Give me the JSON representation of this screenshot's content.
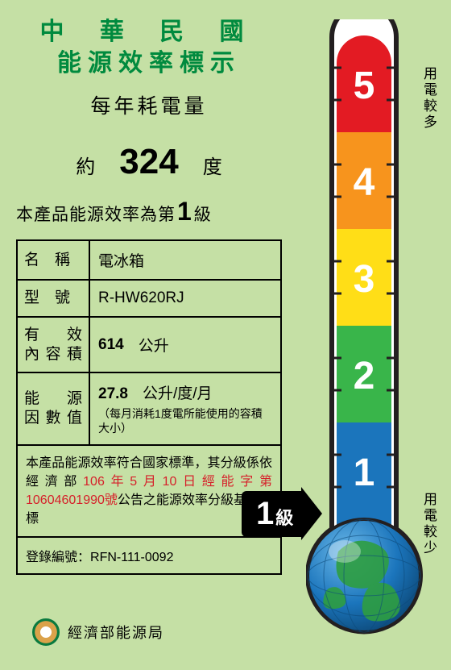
{
  "header": {
    "title_line1": "中 華 民 國",
    "title_line2": "能源效率標示",
    "consumption_label": "每年耗電量",
    "approx": "約",
    "kwh": "324",
    "unit": "度",
    "grade_prefix": "本產品能源效率為第",
    "grade_number": "1",
    "grade_suffix": "級"
  },
  "spec": {
    "name_label": "名　稱",
    "name_value": "電冰箱",
    "model_label": "型　號",
    "model_value": "R-HW620RJ",
    "capacity_label": "有　效內容積",
    "capacity_num": "614",
    "capacity_unit": "公升",
    "factor_label": "能　源因數值",
    "factor_num": "27.8",
    "factor_unit": "公升/度/月",
    "factor_note": "（每月消耗1度電所能使用的容積大小）"
  },
  "compliance": {
    "p1": "本產品能源效率符合國家標準，其分級係依經濟部",
    "red": "106年5月10日經能字第10604601990號",
    "p2": "公告之能源效率分級基準表標示"
  },
  "registration": {
    "label": "登錄編號：",
    "value": "RFN-111-0092"
  },
  "footer": {
    "agency": "經濟部能源局"
  },
  "thermo": {
    "label_more": "用電較多",
    "label_less": "用電較少",
    "levels": [
      {
        "n": "5",
        "color": "#e31b23"
      },
      {
        "n": "4",
        "color": "#f7941d"
      },
      {
        "n": "3",
        "color": "#ffde17"
      },
      {
        "n": "2",
        "color": "#39b54a"
      },
      {
        "n": "1",
        "color": "#1b75bc"
      }
    ],
    "outline": "#231f20",
    "tube_bg": "#ffffff",
    "globe_land": "#39b54a",
    "globe_sea": "#1b75bc"
  },
  "badge": {
    "number": "1",
    "suffix": "級"
  }
}
